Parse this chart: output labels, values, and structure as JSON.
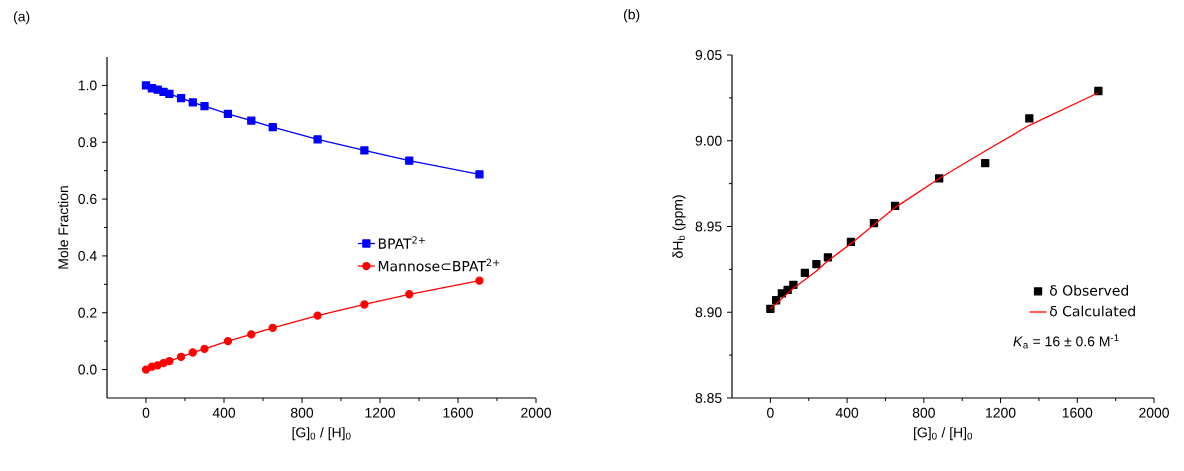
{
  "chart_data": [
    {
      "type": "line",
      "title": "(a)",
      "xlabel": "[G]$_{0}$ / [H]$_{0}$",
      "ylabel": "Mole Fraction",
      "xlim": [
        -200,
        2000
      ],
      "ylim": [
        -0.1,
        1.1
      ],
      "xticks": [
        0,
        400,
        800,
        1200,
        1600,
        2000
      ],
      "yticks": [
        {
          "value": 0,
          "label": "0.0"
        },
        {
          "value": 0.2,
          "label": "0.2"
        },
        {
          "value": 0.4,
          "label": "0.4"
        },
        {
          "value": 0.6,
          "label": "0.6"
        },
        {
          "value": 0.8,
          "label": "0.8"
        },
        {
          "value": 1.0,
          "label": "1.0"
        }
      ],
      "legend": "right",
      "x": [
        0,
        30,
        60,
        90,
        120,
        180,
        240,
        300,
        420,
        540,
        650,
        880,
        1120,
        1350,
        1710
      ],
      "series": [
        {
          "name": "BPAT$^{2+}$",
          "color": "#0000ff",
          "marker": "square",
          "values": [
            1.0,
            0.99,
            0.985,
            0.977,
            0.97,
            0.955,
            0.94,
            0.927,
            0.9,
            0.876,
            0.853,
            0.81,
            0.771,
            0.735,
            0.687
          ]
        },
        {
          "name": "Mannose⊂BPAT$^{2+}$",
          "color": "#ff0000",
          "marker": "circle",
          "values": [
            0.0,
            0.01,
            0.015,
            0.023,
            0.03,
            0.045,
            0.06,
            0.073,
            0.1,
            0.124,
            0.147,
            0.19,
            0.229,
            0.265,
            0.313
          ]
        }
      ]
    },
    {
      "type": "scatter",
      "title": "(b)",
      "xlabel": "[G]$_{0}$ / [H]$_{0}$",
      "ylabel": "δH$_{b}$ (ppm)",
      "xlim": [
        -200,
        2000
      ],
      "ylim": [
        8.85,
        9.05
      ],
      "xticks": [
        0,
        400,
        800,
        1200,
        1600,
        2000
      ],
      "yticks": [
        {
          "value": 8.85,
          "label": "8.85"
        },
        {
          "value": 8.9,
          "label": "8.90"
        },
        {
          "value": 8.95,
          "label": "8.95"
        },
        {
          "value": 9.0,
          "label": "9.00"
        },
        {
          "value": 9.05,
          "label": "9.05"
        }
      ],
      "legend": "bottom right",
      "annotations": [
        "*K*$_{a}$ = 16 ± 0.6 M$^{-1}$"
      ],
      "x": [
        0,
        30,
        60,
        90,
        120,
        180,
        240,
        300,
        420,
        540,
        650,
        880,
        1120,
        1350,
        1710
      ],
      "series": [
        {
          "name": "δ Observed",
          "color": "#000000",
          "marker": "square",
          "type": "scatter",
          "values": [
            8.902,
            8.907,
            8.911,
            8.913,
            8.916,
            8.923,
            8.928,
            8.932,
            8.941,
            8.952,
            8.962,
            8.978,
            8.987,
            9.013,
            9.029
          ]
        },
        {
          "name": "δ Calculated",
          "color": "#ff0000",
          "marker": "none",
          "type": "line",
          "values": [
            8.902,
            8.905,
            8.908,
            8.911,
            8.914,
            8.919,
            8.924,
            8.93,
            8.94,
            8.951,
            8.961,
            8.978,
            8.994,
            9.009,
            9.028
          ]
        }
      ]
    }
  ]
}
